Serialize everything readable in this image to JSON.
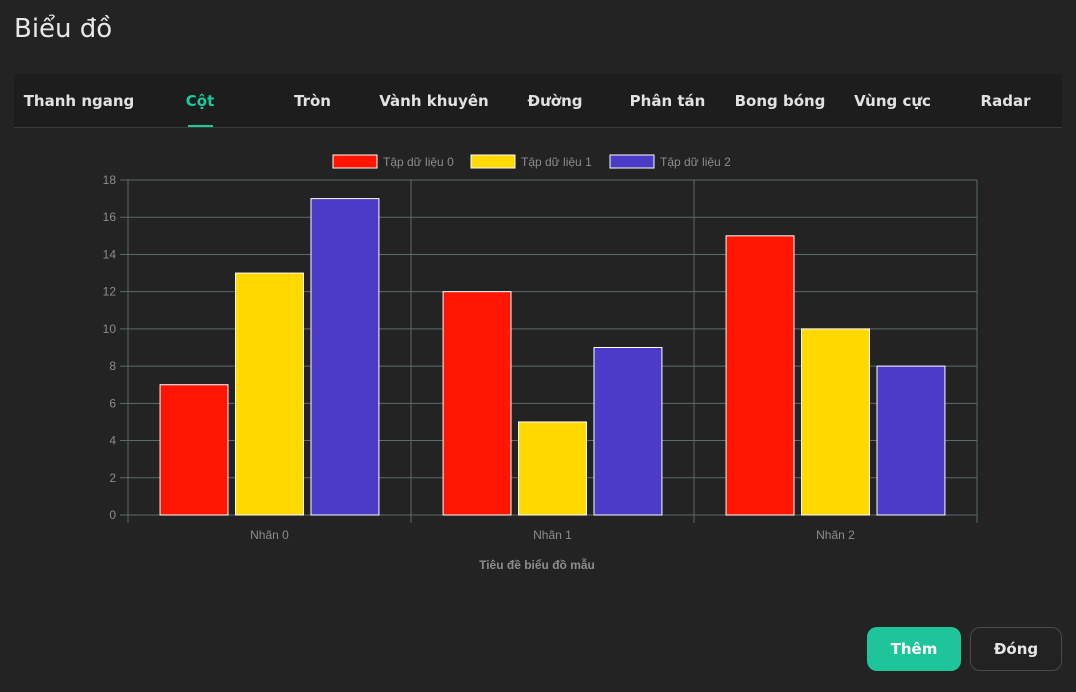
{
  "dialog": {
    "title": "Biểu đồ"
  },
  "tabs": [
    {
      "label": "Thanh ngang",
      "active": false
    },
    {
      "label": "Cột",
      "active": true
    },
    {
      "label": "Tròn",
      "active": false
    },
    {
      "label": "Vành khuyên",
      "active": false
    },
    {
      "label": "Đường",
      "active": false
    },
    {
      "label": "Phân tán",
      "active": false
    },
    {
      "label": "Bong bóng",
      "active": false
    },
    {
      "label": "Vùng cực",
      "active": false
    },
    {
      "label": "Radar",
      "active": false
    }
  ],
  "colors": {
    "accent": "#1ec99a",
    "grid": "#5a6b6b",
    "text": "#8c8c8c"
  },
  "chart_data": {
    "type": "bar",
    "title": "Tiêu đề biểu đồ mẫu",
    "categories": [
      "Nhãn 0",
      "Nhãn 1",
      "Nhãn 2"
    ],
    "series": [
      {
        "name": "Tập dữ liệu 0",
        "color": "#ff1500",
        "values": [
          7,
          12,
          15
        ]
      },
      {
        "name": "Tập dữ liệu 1",
        "color": "#ffd900",
        "values": [
          13,
          5,
          10
        ]
      },
      {
        "name": "Tập dữ liệu 2",
        "color": "#4b3bc6",
        "values": [
          17,
          9,
          8
        ]
      }
    ],
    "ylim": [
      0,
      18
    ],
    "yticks": [
      0,
      2,
      4,
      6,
      8,
      10,
      12,
      14,
      16,
      18
    ],
    "legend": "top-center",
    "grid": true
  },
  "buttons": {
    "add_label": "Thêm",
    "close_label": "Đóng"
  }
}
